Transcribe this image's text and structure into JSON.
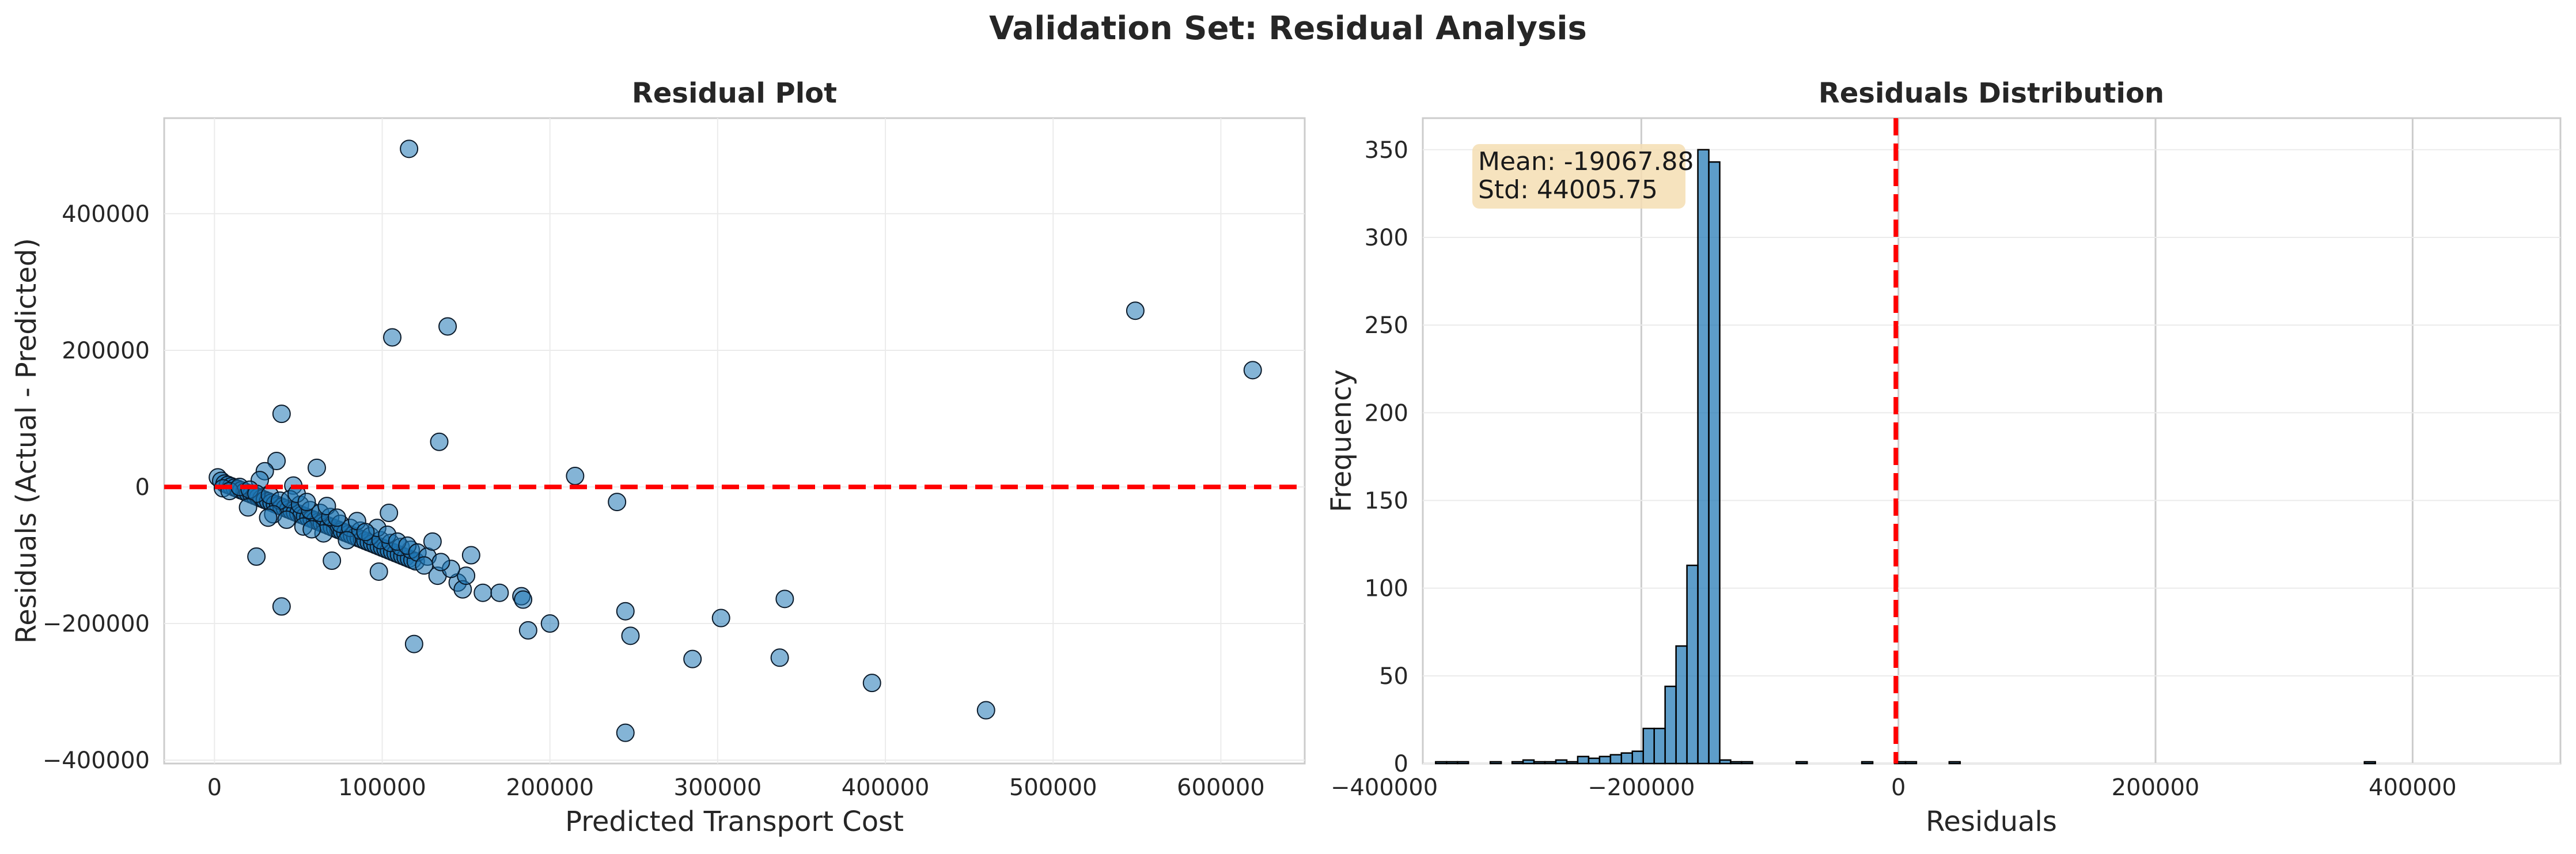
{
  "figure": {
    "title": "Validation Set: Residual Analysis"
  },
  "chart_data": [
    {
      "type": "scatter",
      "title": "Residual Plot",
      "xlabel": "Predicted Transport Cost",
      "ylabel": "Residuals (Actual - Predicted)",
      "xlim": [
        -30000,
        650000
      ],
      "ylim": [
        -405000,
        540000
      ],
      "xticks": [
        0,
        100000,
        200000,
        300000,
        400000,
        500000,
        600000
      ],
      "xtick_labels": [
        "0",
        "100000",
        "200000",
        "300000",
        "400000",
        "500000",
        "600000"
      ],
      "yticks": [
        -400000,
        -200000,
        0,
        200000,
        400000
      ],
      "ytick_labels": [
        "−400000",
        "−200000",
        "0",
        "200000",
        "400000"
      ],
      "grid": true,
      "point_color": "#1f77b4",
      "reference_line": {
        "y": 0,
        "color": "#ff0000",
        "style": "dashed"
      },
      "points": [
        [
          116000,
          495000
        ],
        [
          549000,
          258000
        ],
        [
          619000,
          171000
        ],
        [
          139000,
          235000
        ],
        [
          106000,
          219000
        ],
        [
          40000,
          107000
        ],
        [
          134000,
          66000
        ],
        [
          215000,
          16000
        ],
        [
          240000,
          -22000
        ],
        [
          61000,
          28000
        ],
        [
          37000,
          38000
        ],
        [
          30000,
          23000
        ],
        [
          27000,
          10000
        ],
        [
          47000,
          2000
        ],
        [
          2000,
          14000
        ],
        [
          4000,
          9000
        ],
        [
          6000,
          5000
        ],
        [
          8000,
          3000
        ],
        [
          10000,
          1000
        ],
        [
          12000,
          -1000
        ],
        [
          14000,
          -3000
        ],
        [
          16000,
          -5000
        ],
        [
          18000,
          -7000
        ],
        [
          20000,
          -9000
        ],
        [
          22000,
          -11000
        ],
        [
          24000,
          -13000
        ],
        [
          26000,
          -15000
        ],
        [
          28000,
          -17000
        ],
        [
          30000,
          -19000
        ],
        [
          32000,
          -21000
        ],
        [
          34000,
          -23000
        ],
        [
          36000,
          -25000
        ],
        [
          38000,
          -27000
        ],
        [
          40000,
          -29000
        ],
        [
          42000,
          -31000
        ],
        [
          44000,
          -33000
        ],
        [
          46000,
          -35000
        ],
        [
          48000,
          -37000
        ],
        [
          50000,
          -39000
        ],
        [
          52000,
          -41000
        ],
        [
          54000,
          -43000
        ],
        [
          56000,
          -45000
        ],
        [
          58000,
          -47000
        ],
        [
          60000,
          -49000
        ],
        [
          62000,
          -51000
        ],
        [
          64000,
          -53000
        ],
        [
          66000,
          -55000
        ],
        [
          68000,
          -57000
        ],
        [
          70000,
          -59000
        ],
        [
          72000,
          -61000
        ],
        [
          74000,
          -63000
        ],
        [
          76000,
          -65000
        ],
        [
          78000,
          -67000
        ],
        [
          80000,
          -69000
        ],
        [
          82000,
          -71000
        ],
        [
          84000,
          -73000
        ],
        [
          86000,
          -75000
        ],
        [
          88000,
          -77000
        ],
        [
          90000,
          -79000
        ],
        [
          92000,
          -81000
        ],
        [
          94000,
          -83000
        ],
        [
          96000,
          -85000
        ],
        [
          98000,
          -87000
        ],
        [
          100000,
          -89000
        ],
        [
          102000,
          -91000
        ],
        [
          104000,
          -93000
        ],
        [
          106000,
          -95000
        ],
        [
          108000,
          -97000
        ],
        [
          110000,
          -99000
        ],
        [
          112000,
          -101000
        ],
        [
          114000,
          -103000
        ],
        [
          116000,
          -105000
        ],
        [
          118000,
          -107000
        ],
        [
          120000,
          -109000
        ],
        [
          5000,
          -2000
        ],
        [
          9000,
          -6000
        ],
        [
          15000,
          0
        ],
        [
          21000,
          -4000
        ],
        [
          25000,
          -10000
        ],
        [
          33000,
          -12000
        ],
        [
          39000,
          -20000
        ],
        [
          45000,
          -18000
        ],
        [
          51000,
          -26000
        ],
        [
          57000,
          -34000
        ],
        [
          63000,
          -38000
        ],
        [
          69000,
          -44000
        ],
        [
          75000,
          -54000
        ],
        [
          81000,
          -60000
        ],
        [
          87000,
          -64000
        ],
        [
          93000,
          -72000
        ],
        [
          99000,
          -78000
        ],
        [
          105000,
          -82000
        ],
        [
          111000,
          -88000
        ],
        [
          117000,
          -92000
        ],
        [
          35000,
          -40000
        ],
        [
          43000,
          -48000
        ],
        [
          53000,
          -58000
        ],
        [
          65000,
          -68000
        ],
        [
          79000,
          -78000
        ],
        [
          49000,
          -10000
        ],
        [
          55000,
          -22000
        ],
        [
          67000,
          -28000
        ],
        [
          85000,
          -50000
        ],
        [
          97000,
          -60000
        ],
        [
          103000,
          -70000
        ],
        [
          109000,
          -80000
        ],
        [
          115000,
          -86000
        ],
        [
          121000,
          -96000
        ],
        [
          127000,
          -102000
        ],
        [
          25000,
          -102000
        ],
        [
          40000,
          -175000
        ],
        [
          70000,
          -108000
        ],
        [
          98000,
          -124000
        ],
        [
          104000,
          -38000
        ],
        [
          119000,
          -230000
        ],
        [
          125000,
          -115000
        ],
        [
          130000,
          -80000
        ],
        [
          133000,
          -130000
        ],
        [
          145000,
          -140000
        ],
        [
          148000,
          -150000
        ],
        [
          150000,
          -130000
        ],
        [
          153000,
          -100000
        ],
        [
          160000,
          -155000
        ],
        [
          170000,
          -155000
        ],
        [
          183000,
          -160000
        ],
        [
          184000,
          -165000
        ],
        [
          187000,
          -210000
        ],
        [
          200000,
          -200000
        ],
        [
          245000,
          -182000
        ],
        [
          248000,
          -218000
        ],
        [
          245000,
          -360000
        ],
        [
          285000,
          -252000
        ],
        [
          302000,
          -192000
        ],
        [
          337000,
          -250000
        ],
        [
          340000,
          -164000
        ],
        [
          392000,
          -287000
        ],
        [
          460000,
          -327000
        ],
        [
          141000,
          -120000
        ],
        [
          135000,
          -110000
        ],
        [
          20000,
          -30000
        ],
        [
          32000,
          -45000
        ],
        [
          58000,
          -62000
        ],
        [
          73000,
          -45000
        ],
        [
          90000,
          -66000
        ]
      ]
    },
    {
      "type": "bar",
      "title": "Residuals Distribution",
      "xlabel": "Residuals",
      "ylabel": "Frequency",
      "xlim": [
        -370000,
        515000
      ],
      "ylim": [
        0,
        368
      ],
      "xticks": [
        -400000,
        -200000,
        0,
        200000,
        400000
      ],
      "xtick_labels": [
        "−400000",
        "−200000",
        "0",
        "200000",
        "400000"
      ],
      "yticks": [
        0,
        50,
        100,
        150,
        200,
        250,
        300,
        350
      ],
      "ytick_labels": [
        "0",
        "50",
        "100",
        "150",
        "200",
        "250",
        "300",
        "350"
      ],
      "grid": true,
      "bar_color": "#1f77b4",
      "bin_start": -360000,
      "bin_width": 8500,
      "counts": [
        1,
        1,
        1,
        0,
        0,
        1,
        0,
        1,
        2,
        1,
        1,
        2,
        1,
        4,
        3,
        4,
        5,
        6,
        7,
        20,
        20,
        44,
        67,
        113,
        350,
        343,
        2,
        1,
        1,
        0,
        0,
        0,
        0,
        1,
        0,
        0,
        0,
        0,
        0,
        1,
        0,
        0,
        1,
        1,
        0,
        0,
        0,
        1,
        0,
        0,
        0,
        0,
        0,
        0,
        0,
        0,
        0,
        0,
        0,
        0,
        0,
        0,
        0,
        0,
        0,
        0,
        0,
        0,
        0,
        0,
        0,
        0,
        0,
        0,
        0,
        0,
        0,
        0,
        0,
        0,
        0,
        0,
        0,
        0,
        0,
        1
      ],
      "reference_line": {
        "x": -2000,
        "color": "#ff0000",
        "style": "dashed"
      },
      "stats_box": {
        "mean": "Mean: -19067.88",
        "std": "Std: 44005.75",
        "background": "#f5deb3"
      }
    }
  ]
}
